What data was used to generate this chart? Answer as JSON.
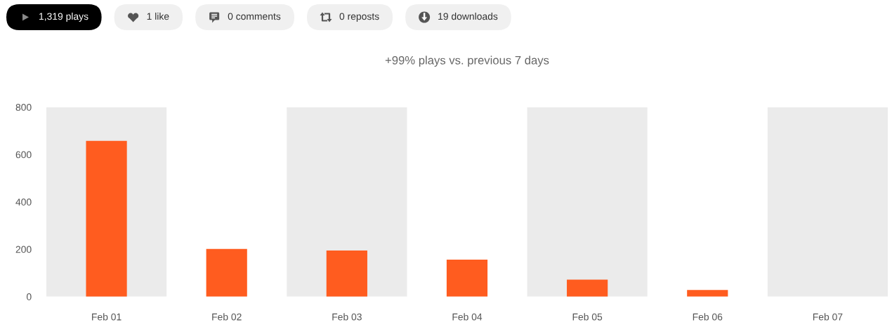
{
  "chart_data": {
    "type": "bar",
    "title": "+99% plays vs. previous 7 days",
    "categories": [
      "Feb 01",
      "Feb 02",
      "Feb 03",
      "Feb 04",
      "Feb 05",
      "Feb 06",
      "Feb 07"
    ],
    "values": [
      658,
      201,
      195,
      156,
      72,
      28,
      0
    ],
    "color": "#ff5c1f",
    "ylim": [
      0,
      800
    ],
    "yticks": [
      0,
      200,
      400,
      600,
      800
    ],
    "bands": [
      {
        "axis": "x",
        "from": "Feb 01",
        "to": "Feb 01",
        "color": "#ebebeb"
      },
      {
        "axis": "x",
        "from": "Feb 03",
        "to": "Feb 03",
        "color": "#ebebeb"
      },
      {
        "axis": "x",
        "from": "Feb 05",
        "to": "Feb 05",
        "color": "#ebebeb"
      },
      {
        "axis": "x",
        "from": "Feb 07",
        "to": "Feb 07",
        "color": "#ebebeb"
      }
    ],
    "annotations": [
      "1,319 plays",
      "1 like",
      "0 comments",
      "0 reposts",
      "19 downloads"
    ]
  }
}
